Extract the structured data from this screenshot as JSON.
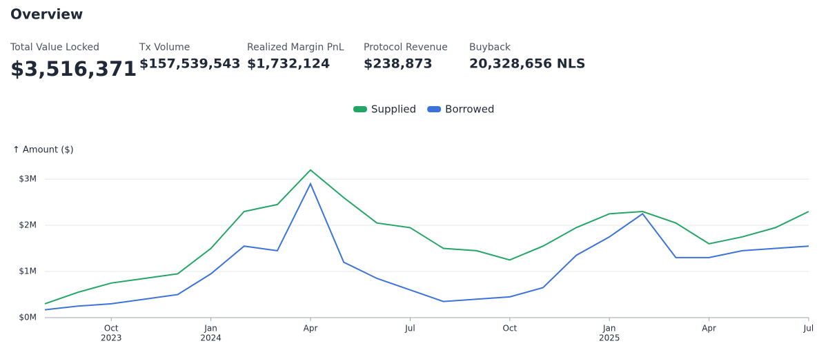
{
  "header": {
    "title": "Overview"
  },
  "stats": [
    {
      "label": "Total Value Locked",
      "value": "$3,516,371"
    },
    {
      "label": "Tx Volume",
      "value": "$157,539,543"
    },
    {
      "label": "Realized Margin PnL",
      "value": "$1,732,124"
    },
    {
      "label": "Protocol Revenue",
      "value": "$238,873"
    },
    {
      "label": "Buyback",
      "value": "20,328,656 NLS"
    }
  ],
  "chart_data": {
    "type": "line",
    "y_label": "↑ Amount ($)",
    "x": [
      "2023-08",
      "2023-09",
      "2023-10",
      "2023-11",
      "2023-12",
      "2024-01",
      "2024-02",
      "2024-03",
      "2024-04",
      "2024-05",
      "2024-06",
      "2024-07",
      "2024-08",
      "2024-09",
      "2024-10",
      "2024-11",
      "2024-12",
      "2025-01",
      "2025-02",
      "2025-03",
      "2025-04",
      "2025-05",
      "2025-06",
      "2025-07"
    ],
    "series": [
      {
        "name": "Supplied",
        "color": "#22a565",
        "values": [
          300000,
          550000,
          750000,
          850000,
          950000,
          1500000,
          2300000,
          2450000,
          3200000,
          2600000,
          2050000,
          1950000,
          1500000,
          1450000,
          1250000,
          1550000,
          1950000,
          2250000,
          2300000,
          2050000,
          1600000,
          1750000,
          1950000,
          2300000
        ]
      },
      {
        "name": "Borrowed",
        "color": "#3b73db",
        "values": [
          170000,
          250000,
          300000,
          400000,
          500000,
          950000,
          1550000,
          1450000,
          2900000,
          1200000,
          850000,
          600000,
          350000,
          400000,
          450000,
          650000,
          1350000,
          1750000,
          2250000,
          1300000,
          1300000,
          1450000,
          1500000,
          1550000
        ]
      }
    ],
    "xlim": [
      "2023-08",
      "2025-07"
    ],
    "xticks": [
      {
        "value": "2023-10",
        "label": "Oct",
        "year": "2023"
      },
      {
        "value": "2024-01",
        "label": "Jan",
        "year": "2024"
      },
      {
        "value": "2024-04",
        "label": "Apr"
      },
      {
        "value": "2024-07",
        "label": "Jul"
      },
      {
        "value": "2024-10",
        "label": "Oct"
      },
      {
        "value": "2025-01",
        "label": "Jan",
        "year": "2025"
      },
      {
        "value": "2025-04",
        "label": "Apr"
      },
      {
        "value": "2025-07",
        "label": "Jul"
      }
    ],
    "ylim": [
      0,
      3300000
    ],
    "yticks": [
      {
        "value": 0,
        "label": "$0M"
      },
      {
        "value": 1000000,
        "label": "$1M"
      },
      {
        "value": 2000000,
        "label": "$2M"
      },
      {
        "value": 3000000,
        "label": "$3M"
      }
    ],
    "grid": true,
    "legend": "top"
  }
}
